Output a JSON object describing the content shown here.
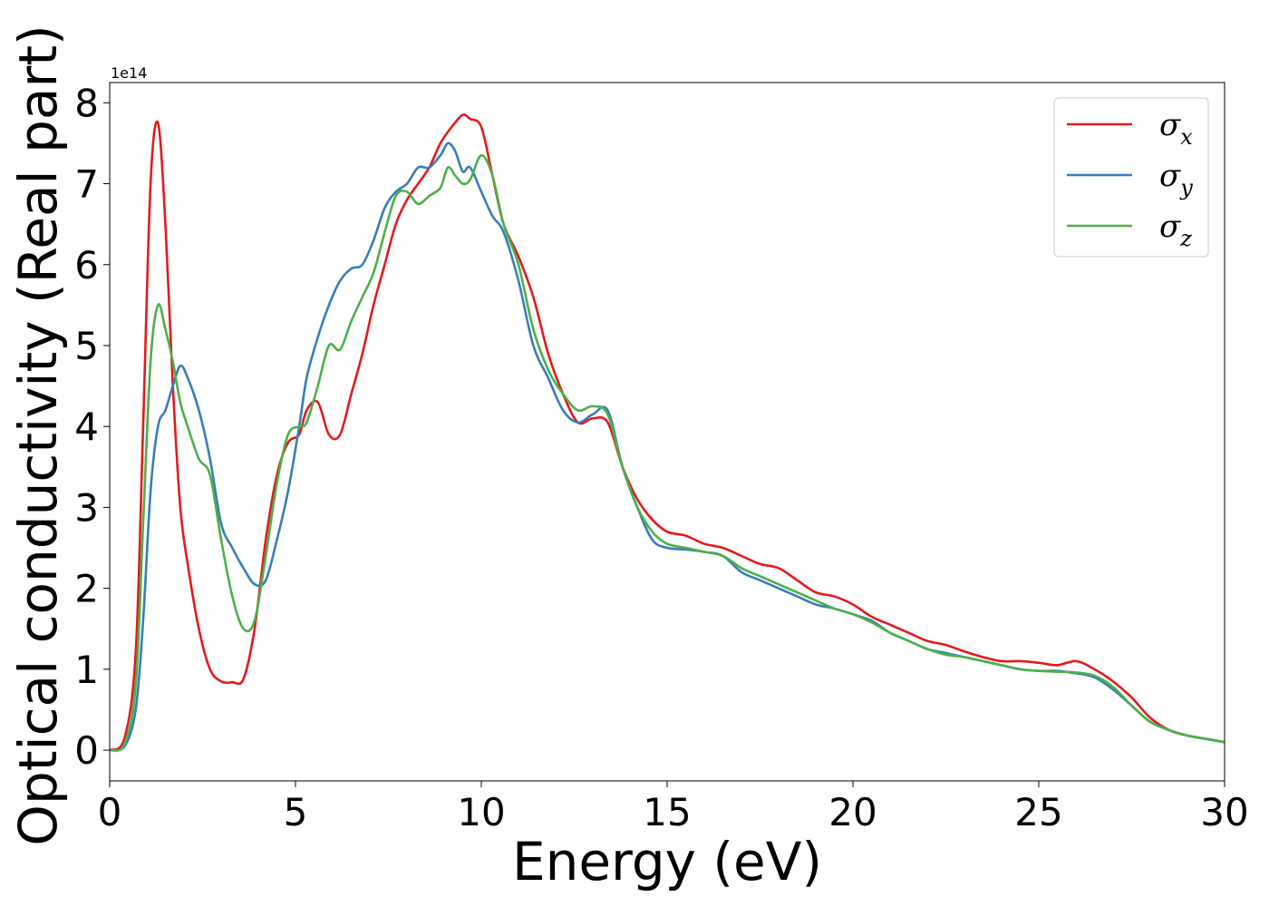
{
  "chart_data": {
    "type": "line",
    "title": "",
    "xlabel": "Energy (eV)",
    "ylabel": "Optical conductivity (Real part)",
    "y_offset_label": "1e14",
    "xlim": [
      0,
      30
    ],
    "ylim": [
      -0.38,
      8.25
    ],
    "xticks": [
      0,
      5,
      10,
      15,
      20,
      25,
      30
    ],
    "yticks": [
      0,
      1,
      2,
      3,
      4,
      5,
      6,
      7,
      8
    ],
    "grid": false,
    "legend": "top-right",
    "series": [
      {
        "name": "σx",
        "label_base": "σ",
        "label_sub": "x",
        "color": "#e41a1c",
        "x": [
          0,
          0.4,
          0.7,
          0.9,
          1.1,
          1.3,
          1.5,
          1.7,
          1.9,
          2.1,
          2.4,
          2.7,
          3.0,
          3.3,
          3.6,
          3.9,
          4.2,
          4.5,
          4.8,
          5.1,
          5.3,
          5.6,
          5.9,
          6.2,
          6.5,
          6.8,
          7.1,
          7.4,
          7.7,
          8.0,
          8.3,
          8.6,
          8.9,
          9.2,
          9.5,
          9.7,
          10.0,
          10.3,
          10.6,
          11.0,
          11.4,
          11.8,
          12.2,
          12.6,
          13.0,
          13.4,
          13.8,
          14.2,
          14.6,
          15.0,
          15.5,
          16.0,
          16.5,
          17.0,
          17.5,
          18.0,
          18.5,
          19.0,
          19.5,
          20.0,
          20.5,
          21.0,
          21.5,
          22.0,
          22.5,
          23.0,
          23.5,
          24.0,
          24.5,
          25.0,
          25.5,
          26.0,
          26.5,
          27.0,
          27.5,
          28.0,
          28.5,
          29.0,
          29.5,
          30.0
        ],
        "y": [
          0,
          0.15,
          1.2,
          4.0,
          7.0,
          7.75,
          6.5,
          4.5,
          3.0,
          2.3,
          1.5,
          1.0,
          0.85,
          0.84,
          0.88,
          1.5,
          2.6,
          3.4,
          3.8,
          3.9,
          4.2,
          4.3,
          3.9,
          3.9,
          4.4,
          4.9,
          5.5,
          6.0,
          6.5,
          6.8,
          7.0,
          7.2,
          7.5,
          7.7,
          7.85,
          7.8,
          7.7,
          7.1,
          6.5,
          6.1,
          5.6,
          4.9,
          4.4,
          4.05,
          4.1,
          4.05,
          3.5,
          3.1,
          2.85,
          2.7,
          2.65,
          2.55,
          2.5,
          2.4,
          2.3,
          2.25,
          2.1,
          1.95,
          1.9,
          1.8,
          1.65,
          1.55,
          1.45,
          1.35,
          1.3,
          1.22,
          1.15,
          1.1,
          1.1,
          1.08,
          1.05,
          1.1,
          1.0,
          0.85,
          0.65,
          0.4,
          0.25,
          0.18,
          0.14,
          0.1
        ]
      },
      {
        "name": "σy",
        "label_base": "σ",
        "label_sub": "y",
        "color": "#377eb8",
        "x": [
          0,
          0.4,
          0.7,
          0.9,
          1.1,
          1.3,
          1.5,
          1.7,
          1.9,
          2.1,
          2.4,
          2.7,
          3.0,
          3.3,
          3.6,
          3.9,
          4.2,
          4.5,
          4.8,
          5.1,
          5.3,
          5.6,
          5.9,
          6.2,
          6.5,
          6.8,
          7.1,
          7.4,
          7.7,
          8.0,
          8.3,
          8.6,
          8.9,
          9.1,
          9.3,
          9.5,
          9.7,
          10.0,
          10.3,
          10.6,
          11.0,
          11.4,
          11.8,
          12.2,
          12.6,
          13.0,
          13.4,
          13.8,
          14.2,
          14.6,
          15.0,
          15.5,
          16.0,
          16.5,
          17.0,
          17.5,
          18.0,
          18.5,
          19.0,
          19.5,
          20.0,
          20.5,
          21.0,
          21.5,
          22.0,
          22.5,
          23.0,
          23.5,
          24.0,
          24.5,
          25.0,
          25.5,
          26.0,
          26.5,
          27.0,
          27.5,
          28.0,
          28.5,
          29.0,
          29.5,
          30.0
        ],
        "y": [
          0,
          0.05,
          0.5,
          1.6,
          3.2,
          4.0,
          4.2,
          4.5,
          4.75,
          4.6,
          4.2,
          3.6,
          2.8,
          2.5,
          2.25,
          2.05,
          2.1,
          2.6,
          3.2,
          4.0,
          4.6,
          5.1,
          5.5,
          5.8,
          5.95,
          6.0,
          6.3,
          6.7,
          6.9,
          7.0,
          7.2,
          7.2,
          7.35,
          7.5,
          7.4,
          7.15,
          7.2,
          6.9,
          6.6,
          6.4,
          5.8,
          5.0,
          4.6,
          4.2,
          4.05,
          4.15,
          4.2,
          3.5,
          3.0,
          2.6,
          2.5,
          2.48,
          2.45,
          2.4,
          2.2,
          2.1,
          2.0,
          1.9,
          1.8,
          1.75,
          1.68,
          1.6,
          1.45,
          1.35,
          1.25,
          1.2,
          1.15,
          1.1,
          1.05,
          1.0,
          0.98,
          0.98,
          0.95,
          0.9,
          0.75,
          0.55,
          0.35,
          0.25,
          0.18,
          0.14,
          0.1
        ]
      },
      {
        "name": "σz",
        "label_base": "σ",
        "label_sub": "z",
        "color": "#4daf4a",
        "x": [
          0,
          0.4,
          0.7,
          0.9,
          1.1,
          1.3,
          1.5,
          1.7,
          1.9,
          2.1,
          2.4,
          2.7,
          3.0,
          3.3,
          3.6,
          3.9,
          4.2,
          4.5,
          4.8,
          5.1,
          5.3,
          5.6,
          5.9,
          6.2,
          6.5,
          6.8,
          7.1,
          7.4,
          7.7,
          8.0,
          8.3,
          8.6,
          8.9,
          9.1,
          9.3,
          9.5,
          9.7,
          10.0,
          10.3,
          10.6,
          11.0,
          11.4,
          11.8,
          12.2,
          12.6,
          13.0,
          13.4,
          13.8,
          14.2,
          14.6,
          15.0,
          15.5,
          16.0,
          16.5,
          17.0,
          17.5,
          18.0,
          18.5,
          19.0,
          19.5,
          20.0,
          20.5,
          21.0,
          21.5,
          22.0,
          22.5,
          23.0,
          23.5,
          24.0,
          24.5,
          25.0,
          25.5,
          26.0,
          26.5,
          27.0,
          27.5,
          28.0,
          28.5,
          29.0,
          29.5,
          30.0
        ],
        "y": [
          0,
          0.08,
          0.8,
          2.8,
          4.8,
          5.5,
          5.2,
          4.8,
          4.3,
          4.0,
          3.6,
          3.4,
          2.6,
          1.9,
          1.5,
          1.6,
          2.4,
          3.3,
          3.9,
          4.0,
          4.05,
          4.5,
          5.0,
          4.95,
          5.3,
          5.6,
          5.9,
          6.4,
          6.85,
          6.9,
          6.75,
          6.85,
          6.95,
          7.2,
          7.1,
          7.0,
          7.05,
          7.35,
          7.1,
          6.5,
          6.0,
          5.2,
          4.7,
          4.4,
          4.2,
          4.25,
          4.15,
          3.5,
          3.0,
          2.7,
          2.55,
          2.5,
          2.45,
          2.4,
          2.25,
          2.15,
          2.05,
          1.95,
          1.85,
          1.75,
          1.68,
          1.58,
          1.45,
          1.35,
          1.25,
          1.18,
          1.15,
          1.1,
          1.05,
          1.0,
          0.98,
          0.97,
          0.96,
          0.92,
          0.78,
          0.55,
          0.35,
          0.25,
          0.18,
          0.14,
          0.1
        ]
      }
    ]
  }
}
